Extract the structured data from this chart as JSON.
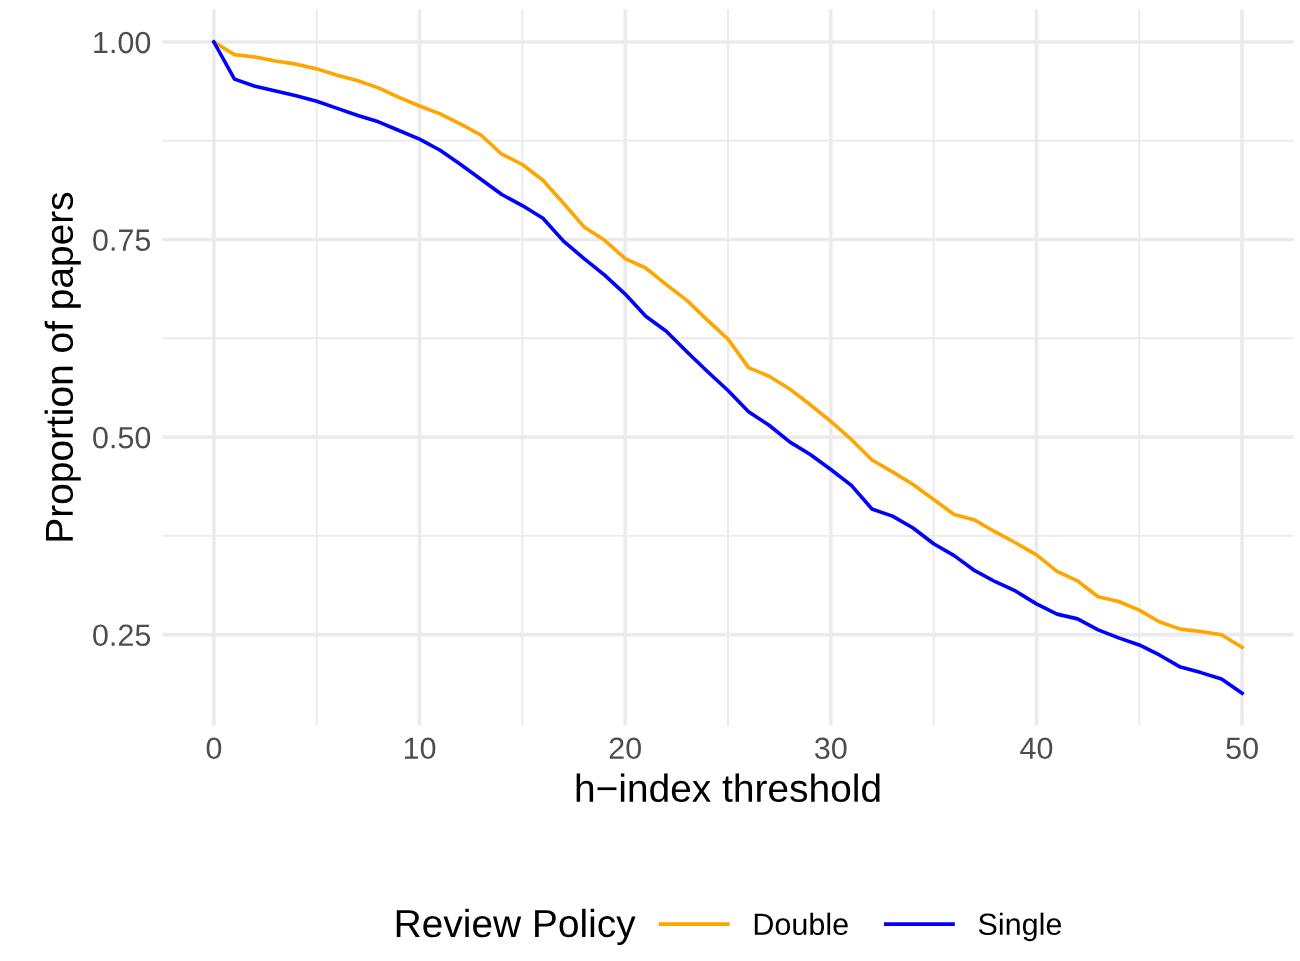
{
  "chart_data": {
    "type": "line",
    "xlabel": "h−index threshold",
    "ylabel": "Proportion of papers",
    "legend_title": "Review Policy",
    "legend": "bottom",
    "grid": true,
    "marker": "none",
    "line_style": "solid",
    "x": [
      0,
      1,
      2,
      3,
      4,
      5,
      6,
      7,
      8,
      9,
      10,
      11,
      12,
      13,
      14,
      15,
      16,
      17,
      18,
      19,
      20,
      21,
      22,
      23,
      24,
      25,
      26,
      27,
      28,
      29,
      30,
      31,
      32,
      33,
      34,
      35,
      36,
      37,
      38,
      39,
      40,
      41,
      42,
      43,
      44,
      45,
      46,
      47,
      48,
      49,
      50
    ],
    "xlim": [
      -2.5,
      52.5
    ],
    "ylim": [
      0.135,
      1.041
    ],
    "xticks": [
      0,
      {
        "value": 5,
        "label": null
      },
      10,
      {
        "value": 15,
        "label": null
      },
      20,
      {
        "value": 25,
        "label": null
      },
      30,
      {
        "value": 35,
        "label": null
      },
      40,
      {
        "value": 45,
        "label": null
      },
      50
    ],
    "yticks": [
      {
        "value": 0.25,
        "label": "0.25"
      },
      {
        "value": 0.375,
        "label": null
      },
      {
        "value": 0.5,
        "label": "0.50"
      },
      {
        "value": 0.625,
        "label": null
      },
      {
        "value": 0.75,
        "label": "0.75"
      },
      {
        "value": 0.875,
        "label": null
      },
      {
        "value": 1.0,
        "label": "1.00"
      }
    ],
    "series": [
      {
        "name": "Double",
        "color": "#ffa500",
        "values": [
          1.0,
          0.984,
          0.981,
          0.976,
          0.972,
          0.966,
          0.958,
          0.951,
          0.942,
          0.93,
          0.919,
          0.909,
          0.896,
          0.882,
          0.858,
          0.845,
          0.825,
          0.796,
          0.766,
          0.749,
          0.726,
          0.714,
          0.693,
          0.673,
          0.648,
          0.624,
          0.588,
          0.577,
          0.561,
          0.541,
          0.52,
          0.497,
          0.471,
          0.456,
          0.44,
          0.421,
          0.402,
          0.395,
          0.38,
          0.366,
          0.351,
          0.33,
          0.318,
          0.298,
          0.292,
          0.281,
          0.266,
          0.257,
          0.254,
          0.25,
          0.234
        ]
      },
      {
        "name": "Single",
        "color": "#0000ff",
        "values": [
          1.0,
          0.953,
          0.944,
          0.938,
          0.932,
          0.925,
          0.916,
          0.907,
          0.899,
          0.888,
          0.877,
          0.863,
          0.845,
          0.826,
          0.807,
          0.793,
          0.777,
          0.748,
          0.726,
          0.705,
          0.681,
          0.653,
          0.634,
          0.608,
          0.583,
          0.559,
          0.532,
          0.515,
          0.494,
          0.478,
          0.459,
          0.439,
          0.409,
          0.4,
          0.385,
          0.365,
          0.35,
          0.331,
          0.317,
          0.305,
          0.289,
          0.276,
          0.27,
          0.256,
          0.246,
          0.237,
          0.224,
          0.209,
          0.202,
          0.194,
          0.176
        ]
      }
    ]
  }
}
